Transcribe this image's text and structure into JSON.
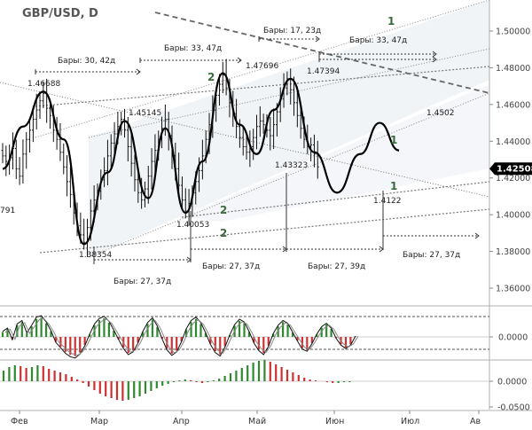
{
  "header": {
    "title": "GBP/USD, D"
  },
  "current_price": "1.42508",
  "chart_data": [
    {
      "type": "candlestick",
      "title": "GBP/USD, D",
      "y_ticks": [
        "1.50000",
        "1.48000",
        "1.46000",
        "1.44000",
        "1.42000",
        "1.40000",
        "1.38000",
        "1.36000"
      ],
      "ylim": [
        1.352,
        1.516
      ],
      "x_ticks": [
        "Фев",
        "Мар",
        "Апр",
        "Май",
        "Июн",
        "Июл",
        "Ав"
      ],
      "closes": [
        1.432,
        1.429,
        1.431,
        1.436,
        1.425,
        1.421,
        1.433,
        1.441,
        1.446,
        1.452,
        1.457,
        1.462,
        1.466,
        1.458,
        1.454,
        1.446,
        1.441,
        1.434,
        1.426,
        1.418,
        1.411,
        1.401,
        1.394,
        1.389,
        1.385,
        1.393,
        1.402,
        1.408,
        1.413,
        1.419,
        1.424,
        1.432,
        1.439,
        1.444,
        1.448,
        1.452,
        1.446,
        1.437,
        1.428,
        1.419,
        1.412,
        1.408,
        1.414,
        1.421,
        1.429,
        1.435,
        1.441,
        1.447,
        1.452,
        1.443,
        1.432,
        1.425,
        1.416,
        1.408,
        1.402,
        1.406,
        1.412,
        1.418,
        1.424,
        1.432,
        1.441,
        1.449,
        1.457,
        1.465,
        1.471,
        1.476,
        1.469,
        1.461,
        1.455,
        1.448,
        1.442,
        1.437,
        1.434,
        1.437,
        1.442,
        1.448,
        1.451,
        1.449,
        1.446,
        1.443,
        1.449,
        1.456,
        1.463,
        1.469,
        1.474,
        1.468,
        1.461,
        1.454,
        1.447,
        1.441,
        1.437,
        1.438,
        1.433,
        1.426
      ],
      "series": [
        {
          "name": "",
          "role": "cycle-projection",
          "x": [
            0,
            6,
            12,
            18,
            24,
            31,
            36,
            43,
            48,
            54,
            59,
            65,
            70,
            75,
            80,
            85,
            92,
            98,
            104,
            109,
            114
          ],
          "values": [
            1.425,
            1.448,
            1.467,
            1.441,
            1.384,
            1.423,
            1.451,
            1.409,
            1.447,
            1.401,
            1.429,
            1.477,
            1.449,
            1.433,
            1.457,
            1.474,
            1.434,
            1.412,
            1.433,
            1.45,
            1.435
          ]
        }
      ],
      "levels": [
        {
          "label": "1.46688",
          "value": 1.4669
        },
        {
          "label": "1.45145",
          "value": 1.4515
        },
        {
          "label": "1.47696",
          "value": 1.477
        },
        {
          "label": "1.47394",
          "value": 1.4739
        },
        {
          "label": "1.43323",
          "value": 1.4332
        },
        {
          "label": "1.40053",
          "value": 1.4005
        },
        {
          "label": "1.38354",
          "value": 1.3835
        },
        {
          "label": "1.4122",
          "value": 1.4122
        },
        {
          "label": "1.4502",
          "value": 1.4502
        },
        {
          "label": "791",
          "value": 1.4079
        }
      ],
      "annotations": [
        "Бары: 30, 42д",
        "Бары: 33, 47д",
        "Бары: 17, 23д",
        "Бары: 33, 47д",
        "Бары: 27, 37д",
        "Бары: 27, 37д",
        "Бары: 27, 39д",
        "Бары: 27, 37д"
      ],
      "wave_labels": [
        "1",
        "2",
        "2",
        "2",
        "1",
        "1"
      ]
    },
    {
      "type": "bar",
      "title": "",
      "y_ticks": [
        "0.0000"
      ],
      "values": [
        0.8,
        1.3,
        -0.4,
        1.9,
        2.4,
        0.6,
        1.7,
        2.9,
        3.1,
        2.2,
        0.9,
        -0.8,
        -1.6,
        -2.4,
        -2.9,
        -3.1,
        -2.5,
        -1.3,
        0.4,
        1.9,
        2.7,
        3.0,
        2.3,
        1.0,
        -0.4,
        -1.7,
        -2.6,
        -2.2,
        -0.9,
        0.8,
        2.1,
        2.8,
        1.6,
        -0.3,
        -1.9,
        -2.7,
        -2.2,
        -0.7,
        1.2,
        2.4,
        2.9,
        2.1,
        0.6,
        -1.1,
        -2.3,
        -2.8,
        -1.5,
        0.3,
        1.8,
        2.6,
        2.2,
        0.8,
        -0.9,
        -2.0,
        -2.6,
        -1.4,
        0.5,
        1.7,
        2.4,
        2.0,
        0.7,
        -0.6,
        -1.8,
        -2.1,
        -1.0,
        0.4,
        1.5,
        2.0,
        1.3,
        -0.2,
        -1.2,
        -1.7,
        -1.2,
        0.1
      ]
    },
    {
      "type": "bar",
      "title": "",
      "y_ticks": [
        "0.0000",
        "-0.0500"
      ],
      "values": [
        0.012,
        0.016,
        0.018,
        0.017,
        0.015,
        0.016,
        0.018,
        0.017,
        0.014,
        0.012,
        0.01,
        0.008,
        0.005,
        0.002,
        -0.002,
        -0.006,
        -0.01,
        -0.014,
        -0.017,
        -0.019,
        -0.021,
        -0.022,
        -0.021,
        -0.019,
        -0.017,
        -0.014,
        -0.011,
        -0.008,
        -0.005,
        -0.003,
        -0.001,
        0.001,
        0.002,
        0.001,
        -0.001,
        -0.002,
        -0.001,
        0.001,
        0.003,
        0.006,
        0.009,
        0.012,
        0.015,
        0.018,
        0.021,
        0.023,
        0.024,
        0.022,
        0.019,
        0.016,
        0.013,
        0.01,
        0.007,
        0.004,
        0.002,
        0.001,
        0.0,
        -0.001,
        -0.002,
        -0.002,
        -0.001,
        -0.001,
        0.0
      ]
    }
  ]
}
